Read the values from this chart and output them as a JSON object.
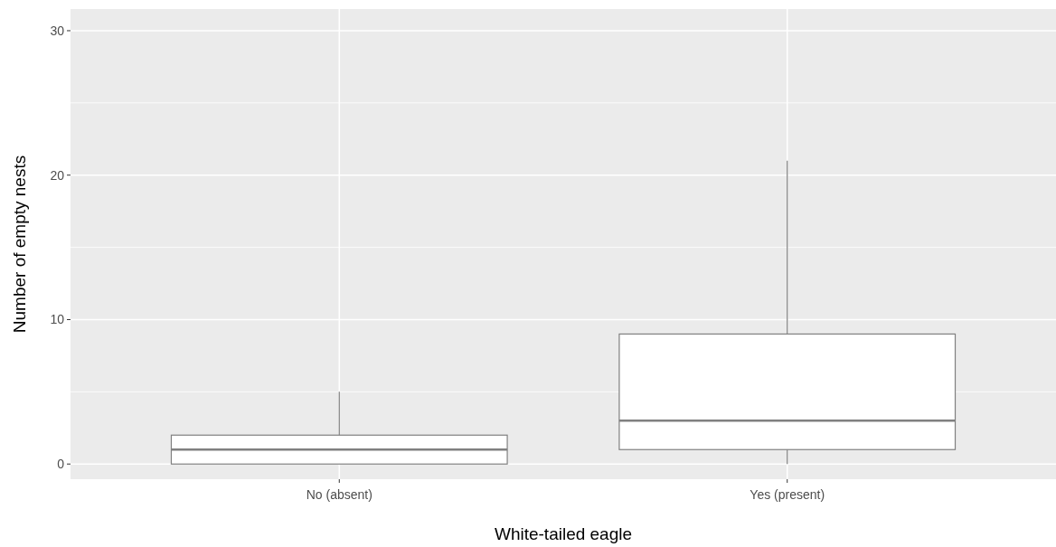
{
  "chart_data": {
    "type": "box",
    "xlabel": "White-tailed eagle",
    "ylabel": "Number of empty nests",
    "categories": [
      "No (absent)",
      "Yes (present)"
    ],
    "boxes": [
      {
        "low": 0,
        "q1": 0,
        "median": 1,
        "q3": 2,
        "high": 5
      },
      {
        "low": 0,
        "q1": 1,
        "median": 3,
        "q3": 9,
        "high": 21
      }
    ],
    "color": "#808080",
    "ylim": [
      -1.05,
      31.5
    ],
    "yticks": [
      0,
      10,
      20,
      30
    ],
    "grid": true
  }
}
